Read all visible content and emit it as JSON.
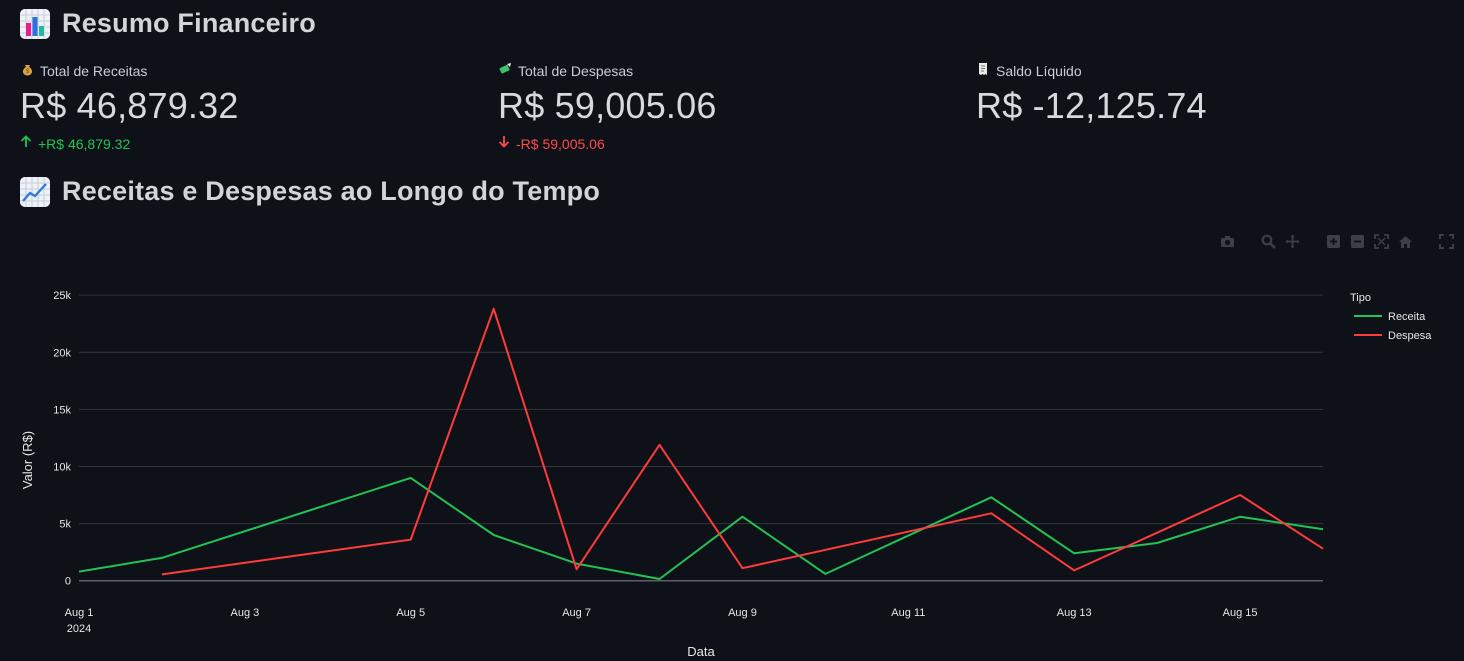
{
  "header": {
    "title": "Resumo Financeiro"
  },
  "metrics": [
    {
      "icon": "money-bag-icon",
      "label": "Total de Receitas",
      "value": "R$ 46,879.32",
      "delta": "+R$ 46,879.32",
      "direction": "up"
    },
    {
      "icon": "money-wings-icon",
      "label": "Total de Despesas",
      "value": "R$ 59,005.06",
      "delta": "-R$ 59,005.06",
      "direction": "down"
    },
    {
      "icon": "receipt-icon",
      "label": "Saldo Líquido",
      "value": "R$ -12,125.74",
      "delta": "",
      "direction": "none"
    }
  ],
  "chart_section": {
    "title": "Receitas e Despesas ao Longo do Tempo"
  },
  "colors": {
    "background": "#0e1117",
    "receita": "#21c354",
    "despesa": "#ff3b3b",
    "grid": "#31353d"
  },
  "modebar": [
    "camera-icon",
    "zoom-icon",
    "pan-icon",
    "zoom-in-icon",
    "zoom-out-icon",
    "autoscale-icon",
    "reset-axes-icon",
    "fullscreen-icon"
  ],
  "chart_data": {
    "type": "line",
    "xlabel": "Data",
    "ylabel": "Valor (R$)",
    "legend_title": "Tipo",
    "legend_position": "top-right",
    "grid": true,
    "x_tick_labels": [
      "Aug 1",
      "Aug 3",
      "Aug 5",
      "Aug 7",
      "Aug 9",
      "Aug 11",
      "Aug 13",
      "Aug 15"
    ],
    "x_tick_sublabel": "2024",
    "x_tick_days": [
      1,
      3,
      5,
      7,
      9,
      11,
      13,
      15
    ],
    "xlim": [
      1,
      16
    ],
    "y_ticks": [
      0,
      5000,
      10000,
      15000,
      20000,
      25000
    ],
    "y_tick_labels": [
      "0",
      "5k",
      "10k",
      "15k",
      "20k",
      "25k"
    ],
    "ylim": [
      -900,
      26500
    ],
    "series": [
      {
        "name": "Receita",
        "color": "#21c354",
        "x": [
          1,
          2,
          5,
          6,
          7,
          8,
          9,
          10,
          12,
          13,
          14,
          15,
          16
        ],
        "y": [
          800,
          2000,
          9000,
          4000,
          1500,
          150,
          5600,
          600,
          7300,
          2400,
          3300,
          5600,
          4500
        ]
      },
      {
        "name": "Despesa",
        "color": "#ff3b3b",
        "x": [
          2,
          5,
          6,
          7,
          8,
          9,
          12,
          13,
          15,
          16
        ],
        "y": [
          550,
          3600,
          23800,
          1000,
          11900,
          1100,
          5900,
          900,
          7500,
          2800
        ]
      }
    ]
  }
}
